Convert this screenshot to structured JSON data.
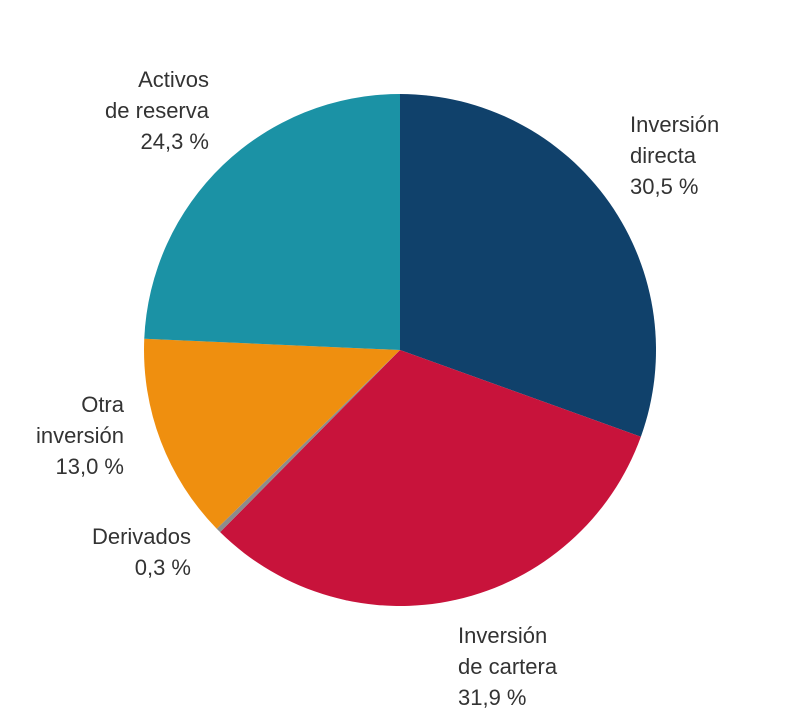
{
  "chart_data": {
    "type": "pie",
    "slices": [
      {
        "label_lines": [
          "Inversión",
          "directa"
        ],
        "value": 30.5,
        "value_label": "30,5 %",
        "color": "#10416b"
      },
      {
        "label_lines": [
          "Inversión",
          "de cartera"
        ],
        "value": 31.9,
        "value_label": "31,9 %",
        "color": "#c8133b"
      },
      {
        "label_lines": [
          "Derivados"
        ],
        "value": 0.3,
        "value_label": "0,3 %",
        "color": "#8c8c8c"
      },
      {
        "label_lines": [
          "Otra",
          "inversión"
        ],
        "value": 13.0,
        "value_label": "13,0 %",
        "color": "#ef8f0f"
      },
      {
        "label_lines": [
          "Activos",
          "de reserva"
        ],
        "value": 24.3,
        "value_label": "24,3 %",
        "color": "#1b92a5"
      }
    ],
    "start": "12 o'clock",
    "direction": "clockwise",
    "legend": "none"
  }
}
